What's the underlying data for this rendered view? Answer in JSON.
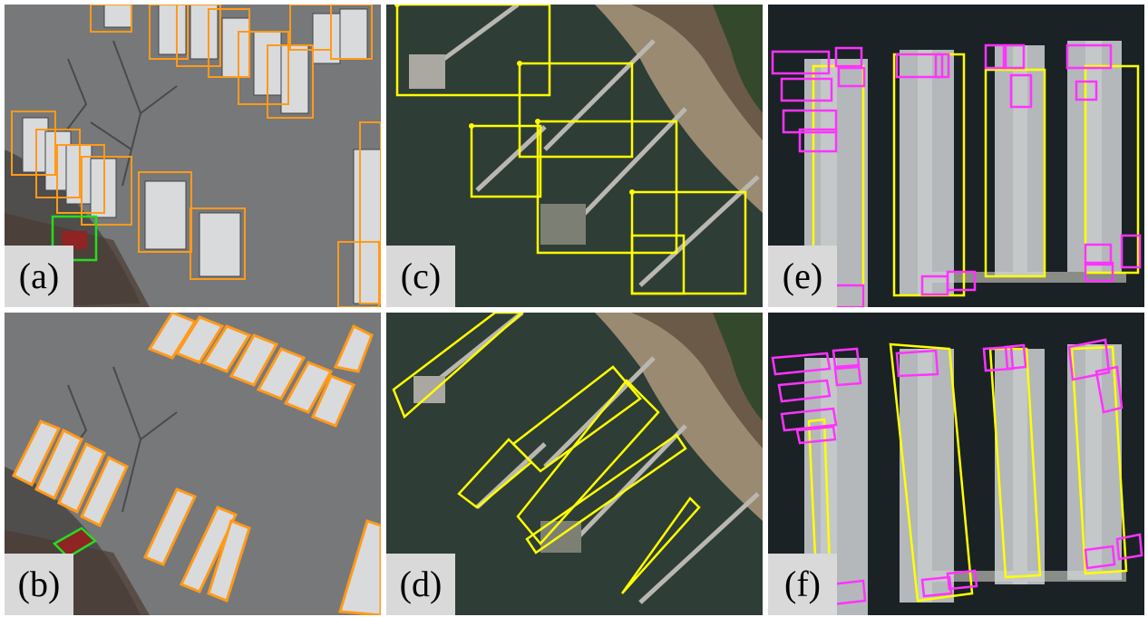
{
  "figure": {
    "panels": [
      {
        "id": "a",
        "label": "(a)",
        "scene": "parking-lot-buses",
        "box_style": "horizontal",
        "box_colors": {
          "bus": "#ff9a1a",
          "car": "#22dd22"
        }
      },
      {
        "id": "c",
        "label": "(c)",
        "scene": "harbor-piers",
        "box_style": "horizontal",
        "box_colors": {
          "pier": "#ffff00"
        }
      },
      {
        "id": "e",
        "label": "(e)",
        "scene": "marina-boats",
        "box_style": "horizontal",
        "box_colors": {
          "dock": "#ffff00",
          "boat": "#ff33ff"
        }
      },
      {
        "id": "b",
        "label": "(b)",
        "scene": "parking-lot-buses",
        "box_style": "oriented",
        "box_colors": {
          "bus": "#ff9a1a",
          "car": "#22dd22"
        }
      },
      {
        "id": "d",
        "label": "(d)",
        "scene": "harbor-piers",
        "box_style": "oriented",
        "box_colors": {
          "pier": "#ffff00"
        }
      },
      {
        "id": "f",
        "label": "(f)",
        "scene": "marina-boats",
        "box_style": "oriented",
        "box_colors": {
          "dock": "#ffff00",
          "boat": "#ff33ff"
        }
      }
    ]
  }
}
